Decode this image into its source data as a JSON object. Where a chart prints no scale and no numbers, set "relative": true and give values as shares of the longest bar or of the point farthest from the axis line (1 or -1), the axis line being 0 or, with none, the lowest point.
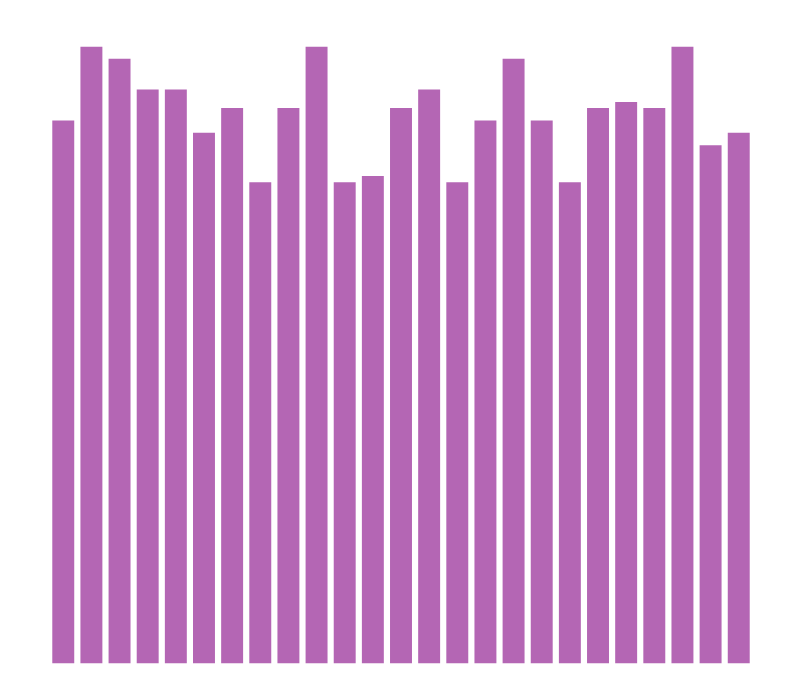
{
  "chart_data": {
    "type": "bar",
    "relative": true,
    "categories": [
      null,
      null,
      null,
      null,
      null,
      null,
      null,
      null,
      null,
      null,
      null,
      null,
      null,
      null,
      null,
      null,
      null,
      null,
      null,
      null,
      null,
      null,
      null,
      null,
      null
    ],
    "values": [
      0.88,
      1,
      0.98,
      0.93,
      0.93,
      0.86,
      0.9,
      0.78,
      0.9,
      1,
      0.78,
      0.79,
      0.9,
      0.93,
      0.78,
      0.88,
      0.98,
      0.88,
      0.78,
      0.9,
      0.91,
      0.9,
      1,
      0.84,
      0.86
    ],
    "color": "#b466b4",
    "grid": false,
    "legend": false
  }
}
